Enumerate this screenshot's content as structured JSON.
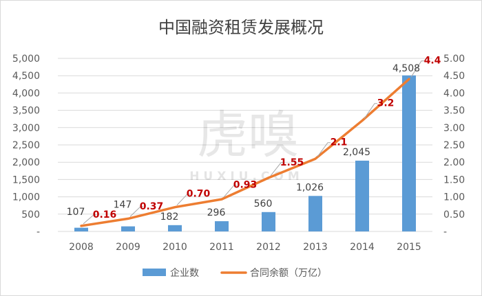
{
  "watermark": {
    "chinese": "虎嗅",
    "english": "HUXIU.COM"
  },
  "chart_data": {
    "type": "bar",
    "title": "中国融资租赁发展概况",
    "categories": [
      "2008",
      "2009",
      "2010",
      "2011",
      "2012",
      "2013",
      "2014",
      "2015"
    ],
    "series": [
      {
        "name": "企业数",
        "type": "bar",
        "axis": "left",
        "color": "#5b9bd5",
        "values": [
          107,
          147,
          182,
          296,
          560,
          1026,
          2045,
          4508
        ],
        "labels": [
          "107",
          "147",
          "182",
          "296",
          "560",
          "1,026",
          "2,045",
          "4,508"
        ]
      },
      {
        "name": "合同余额（万亿）",
        "type": "line",
        "axis": "right",
        "color": "#ed7d31",
        "values": [
          0.16,
          0.37,
          0.7,
          0.93,
          1.55,
          2.1,
          3.2,
          4.4
        ],
        "labels": [
          "0.16",
          "0.37",
          "0.70",
          "0.93",
          "1.55",
          "2.1",
          "3.2",
          "4.4"
        ]
      }
    ],
    "left_axis": {
      "ylim": [
        0,
        5000
      ],
      "ticks": [
        0,
        500,
        1000,
        1500,
        2000,
        2500,
        3000,
        3500,
        4000,
        4500,
        5000
      ],
      "tick_labels": [
        "-",
        "500",
        "1,000",
        "1,500",
        "2,000",
        "2,500",
        "3,000",
        "3,500",
        "4,000",
        "4,500",
        "5,000"
      ]
    },
    "right_axis": {
      "ylim": [
        0,
        5
      ],
      "ticks": [
        0,
        0.5,
        1,
        1.5,
        2,
        2.5,
        3,
        3.5,
        4,
        4.5,
        5
      ],
      "tick_labels": [
        "-",
        "0.50",
        "1.00",
        "1.50",
        "2.00",
        "2.50",
        "3.00",
        "3.50",
        "4.00",
        "4.50",
        "5.00"
      ]
    },
    "grid": true,
    "legend_position": "bottom",
    "xlabel": "",
    "ylabel": ""
  }
}
